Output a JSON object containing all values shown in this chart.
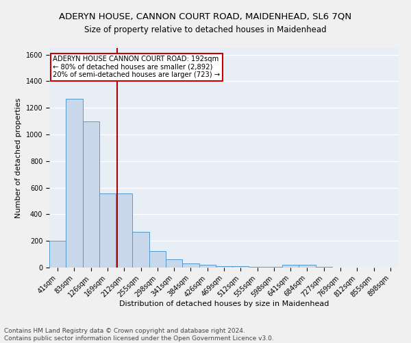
{
  "title": "ADERYN HOUSE, CANNON COURT ROAD, MAIDENHEAD, SL6 7QN",
  "subtitle": "Size of property relative to detached houses in Maidenhead",
  "xlabel": "Distribution of detached houses by size in Maidenhead",
  "ylabel": "Number of detached properties",
  "categories": [
    "41sqm",
    "83sqm",
    "126sqm",
    "169sqm",
    "212sqm",
    "255sqm",
    "298sqm",
    "341sqm",
    "384sqm",
    "426sqm",
    "469sqm",
    "512sqm",
    "555sqm",
    "598sqm",
    "641sqm",
    "684sqm",
    "727sqm",
    "769sqm",
    "812sqm",
    "855sqm",
    "898sqm"
  ],
  "values": [
    200,
    1270,
    1100,
    555,
    555,
    270,
    125,
    62,
    30,
    20,
    12,
    8,
    5,
    5,
    20,
    20,
    5,
    0,
    0,
    0,
    0
  ],
  "bar_color": "#c8d8ea",
  "bar_edge_color": "#5599cc",
  "annotation_line_color": "#aa0000",
  "annotation_text_line1": "ADERYN HOUSE CANNON COURT ROAD: 192sqm",
  "annotation_text_line2": "← 80% of detached houses are smaller (2,892)",
  "annotation_text_line3": "20% of semi-detached houses are larger (723) →",
  "annotation_box_facecolor": "#ffffff",
  "annotation_box_edgecolor": "#cc0000",
  "footer_line1": "Contains HM Land Registry data © Crown copyright and database right 2024.",
  "footer_line2": "Contains public sector information licensed under the Open Government Licence v3.0.",
  "ylim": [
    0,
    1650
  ],
  "background_color": "#e8eef5",
  "grid_color": "#ffffff",
  "fig_facecolor": "#f0f0f0"
}
